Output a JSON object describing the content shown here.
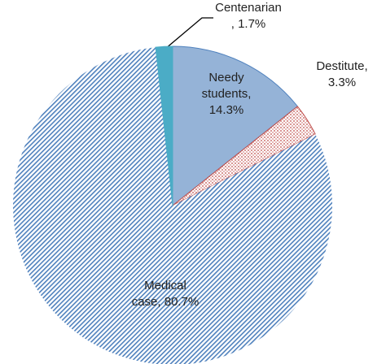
{
  "chart_data": {
    "type": "pie",
    "categories": [
      "Needy students",
      "Destitute",
      "Medical case",
      "Centenarian"
    ],
    "values": [
      14.3,
      3.3,
      80.7,
      1.7
    ],
    "value_labels": [
      "Needy\nstudents,\n14.3%",
      "Destitute,\n3.3%",
      "Medical\ncase, 80.7%",
      "Centenarian\n, 1.7%"
    ],
    "colors": [
      "#95b3d7",
      "#e6b9b8",
      "#4f81bd",
      "#4bacc6"
    ]
  }
}
